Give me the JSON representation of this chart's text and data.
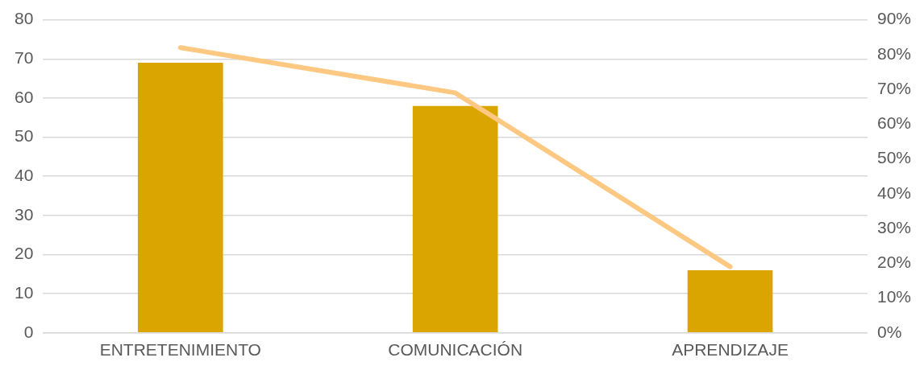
{
  "chart_data": {
    "type": "bar",
    "categories": [
      "ENTRETENIMIENTO",
      "COMUNICACIÓN",
      "APRENDIZAJE"
    ],
    "series": [
      {
        "color": "#dba500",
        "values": [
          69,
          58,
          16
        ]
      },
      {
        "type": "line",
        "color": "#fdc882",
        "axis": "y2",
        "values": [
          82,
          69,
          19
        ]
      }
    ],
    "ylim": [
      0,
      80
    ],
    "yticks": [
      0,
      10,
      20,
      30,
      40,
      50,
      60,
      70,
      80
    ],
    "y2lim": [
      0,
      90
    ],
    "y2ticks": [
      {
        "value": 0,
        "label": "0%"
      },
      {
        "value": 10,
        "label": "10%"
      },
      {
        "value": 20,
        "label": "20%"
      },
      {
        "value": 30,
        "label": "30%"
      },
      {
        "value": 40,
        "label": "40%"
      },
      {
        "value": 50,
        "label": "50%"
      },
      {
        "value": 60,
        "label": "60%"
      },
      {
        "value": 70,
        "label": "70%"
      },
      {
        "value": 80,
        "label": "80%"
      },
      {
        "value": 90,
        "label": "90%"
      }
    ],
    "grid": "y",
    "legend": false,
    "marker": "none",
    "line_style": "solid"
  }
}
